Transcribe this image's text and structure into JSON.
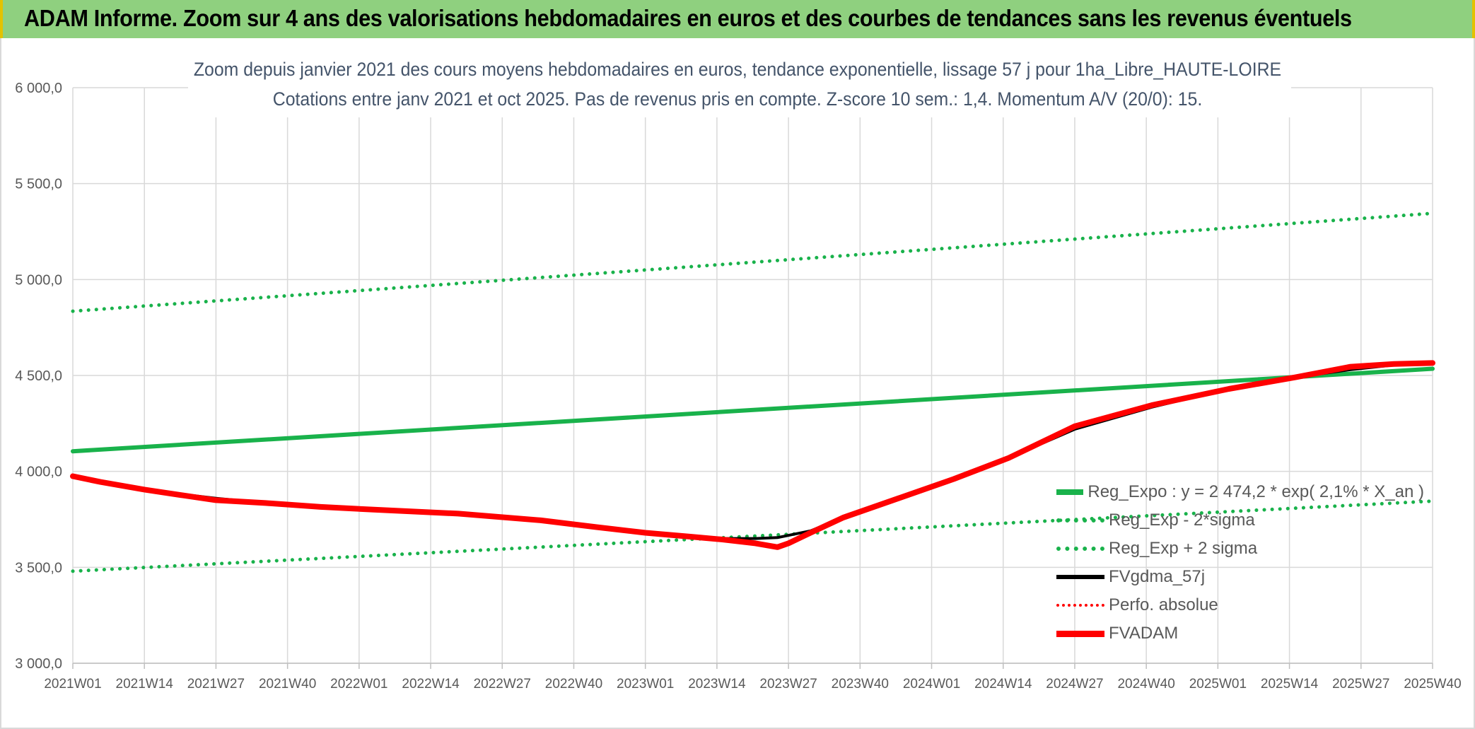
{
  "banner": {
    "title": "ADAM Informe. Zoom sur 4 ans des valorisations hebdomadaires en euros et des courbes de tendances sans les revenus éventuels",
    "bg_color": "#8fd07f"
  },
  "chart_data": {
    "type": "line",
    "title": "Zoom depuis janvier 2021 des cours moyens hebdomadaires en euros, tendance exponentielle, lissage 57 j pour 1ha_Libre_HAUTE-LOIRE",
    "subtitle": "Cotations entre janv 2021 et oct 2025. Pas de revenus pris en compte. Z-score 10 sem.: 1,4. Momentum A/V (20/0): 15.",
    "xlabel": "",
    "ylabel": "",
    "ylim": [
      3000,
      6000
    ],
    "y_ticks": [
      3000,
      3500,
      4000,
      4500,
      5000,
      5500,
      6000
    ],
    "y_tick_labels": [
      "3 000,0",
      "3 500,0",
      "4 000,0",
      "4 500,0",
      "5 000,0",
      "5 500,0",
      "6 000,0"
    ],
    "x_range_weeks": [
      0,
      247
    ],
    "x_ticks": [
      0,
      13,
      26,
      39,
      52,
      65,
      78,
      91,
      104,
      117,
      130,
      143,
      156,
      169,
      182,
      195,
      208,
      221,
      234,
      247
    ],
    "x_tick_labels": [
      "2021W01",
      "2021W14",
      "2021W27",
      "2021W40",
      "2022W01",
      "2022W14",
      "2022W27",
      "2022W40",
      "2023W01",
      "2023W14",
      "2023W27",
      "2023W40",
      "2024W01",
      "2024W14",
      "2024W27",
      "2024W40",
      "2025W01",
      "2025W14",
      "2025W27",
      "2025W40"
    ],
    "grid": true,
    "legend_position": "bottom-right",
    "series": [
      {
        "name": "Reg_Expo : y = 2 474,2 * exp( 2,1% *  X_an )",
        "style": "solid",
        "color": "#19b24b",
        "width": 6,
        "x": [
          0,
          247
        ],
        "y": [
          4105,
          4535
        ]
      },
      {
        "name": "Reg_Exp - 2*sigma",
        "style": "dotted",
        "color": "#19b24b",
        "width": 5,
        "x": [
          0,
          247
        ],
        "y": [
          3480,
          3845
        ]
      },
      {
        "name": "Reg_Exp + 2 sigma",
        "style": "dotted",
        "color": "#19b24b",
        "width": 5,
        "x": [
          0,
          247
        ],
        "y": [
          4835,
          5345
        ]
      },
      {
        "name": "FVgdma_57j",
        "style": "solid",
        "color": "#000000",
        "width": 4,
        "x": [
          0,
          5,
          13,
          20,
          26,
          35,
          45,
          55,
          70,
          85,
          95,
          104,
          112,
          118,
          124,
          128,
          134,
          140,
          150,
          160,
          170,
          182,
          196,
          210,
          222,
          232,
          240,
          247
        ],
        "y": [
          3975,
          3945,
          3905,
          3880,
          3860,
          3835,
          3815,
          3800,
          3780,
          3745,
          3710,
          3680,
          3660,
          3650,
          3650,
          3655,
          3690,
          3760,
          3860,
          3960,
          4070,
          4220,
          4335,
          4430,
          4490,
          4530,
          4555,
          4560
        ]
      },
      {
        "name": "Perfo. absolue",
        "style": "dotted",
        "color": "#ff0000",
        "width": 3,
        "x": [],
        "y": []
      },
      {
        "name": "FVADAM",
        "style": "solid",
        "color": "#ff0000",
        "width": 8,
        "x": [
          0,
          5,
          13,
          20,
          26,
          35,
          45,
          55,
          70,
          85,
          95,
          104,
          112,
          118,
          124,
          128,
          130,
          134,
          140,
          150,
          160,
          170,
          182,
          196,
          210,
          222,
          232,
          240,
          247
        ],
        "y": [
          3975,
          3945,
          3905,
          3875,
          3850,
          3835,
          3815,
          3800,
          3780,
          3745,
          3710,
          3680,
          3660,
          3645,
          3625,
          3605,
          3625,
          3680,
          3760,
          3860,
          3960,
          4070,
          4235,
          4345,
          4430,
          4490,
          4545,
          4560,
          4565
        ]
      }
    ]
  }
}
